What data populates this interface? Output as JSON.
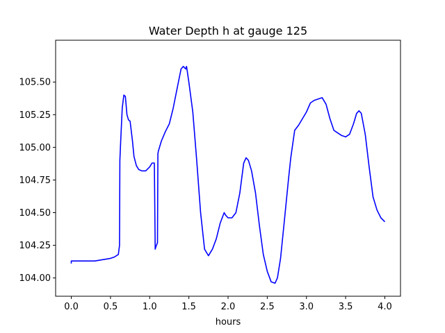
{
  "chart_data": {
    "type": "line",
    "title": "Water Depth h at gauge 125",
    "xlabel": "hours",
    "ylabel": "",
    "xlim": [
      -0.2,
      4.2
    ],
    "ylim": [
      103.86,
      105.82
    ],
    "xticks": [
      0.0,
      0.5,
      1.0,
      1.5,
      2.0,
      2.5,
      3.0,
      3.5,
      4.0
    ],
    "xtick_labels": [
      "0.0",
      "0.5",
      "1.0",
      "1.5",
      "2.0",
      "2.5",
      "3.0",
      "3.5",
      "4.0"
    ],
    "yticks": [
      104.0,
      104.25,
      104.5,
      104.75,
      105.0,
      105.25,
      105.5
    ],
    "ytick_labels": [
      "104.00",
      "104.25",
      "104.50",
      "104.75",
      "105.00",
      "105.25",
      "105.50"
    ],
    "grid": false,
    "legend": "none",
    "series": [
      {
        "color": "#0000ff",
        "x": [
          0.0,
          0.0,
          0.1,
          0.2,
          0.3,
          0.4,
          0.5,
          0.55,
          0.6,
          0.615,
          0.62,
          0.63,
          0.65,
          0.67,
          0.69,
          0.71,
          0.73,
          0.75,
          0.78,
          0.8,
          0.83,
          0.86,
          0.9,
          0.95,
          1.0,
          1.03,
          1.06,
          1.07,
          1.08,
          1.1,
          1.105,
          1.11,
          1.15,
          1.2,
          1.25,
          1.3,
          1.35,
          1.4,
          1.43,
          1.46,
          1.47,
          1.5,
          1.55,
          1.6,
          1.65,
          1.7,
          1.75,
          1.8,
          1.85,
          1.9,
          1.95,
          1.97,
          2.0,
          2.05,
          2.1,
          2.15,
          2.2,
          2.23,
          2.26,
          2.3,
          2.35,
          2.4,
          2.45,
          2.5,
          2.55,
          2.6,
          2.63,
          2.67,
          2.72,
          2.77,
          2.8,
          2.85,
          2.9,
          3.0,
          3.05,
          3.1,
          3.15,
          3.2,
          3.25,
          3.3,
          3.35,
          3.4,
          3.45,
          3.5,
          3.55,
          3.6,
          3.64,
          3.67,
          3.7,
          3.75,
          3.8,
          3.85,
          3.9,
          3.95,
          4.0
        ],
        "y": [
          104.11,
          104.13,
          104.13,
          104.13,
          104.13,
          104.14,
          104.15,
          104.16,
          104.18,
          104.25,
          104.9,
          105.05,
          105.3,
          105.4,
          105.39,
          105.25,
          105.21,
          105.2,
          105.05,
          104.93,
          104.86,
          104.83,
          104.82,
          104.82,
          104.85,
          104.88,
          104.88,
          104.22,
          104.24,
          104.27,
          104.95,
          104.97,
          105.05,
          105.12,
          105.18,
          105.3,
          105.45,
          105.6,
          105.62,
          105.6,
          105.62,
          105.5,
          105.27,
          104.9,
          104.5,
          104.22,
          104.17,
          104.22,
          104.3,
          104.42,
          104.5,
          104.48,
          104.46,
          104.46,
          104.5,
          104.65,
          104.88,
          104.92,
          104.9,
          104.82,
          104.65,
          104.4,
          104.18,
          104.05,
          103.97,
          103.96,
          104.0,
          104.15,
          104.45,
          104.75,
          104.92,
          105.13,
          105.17,
          105.27,
          105.34,
          105.36,
          105.37,
          105.38,
          105.33,
          105.22,
          105.13,
          105.11,
          105.09,
          105.08,
          105.1,
          105.18,
          105.26,
          105.28,
          105.26,
          105.1,
          104.85,
          104.62,
          104.52,
          104.46,
          104.43
        ]
      }
    ]
  }
}
